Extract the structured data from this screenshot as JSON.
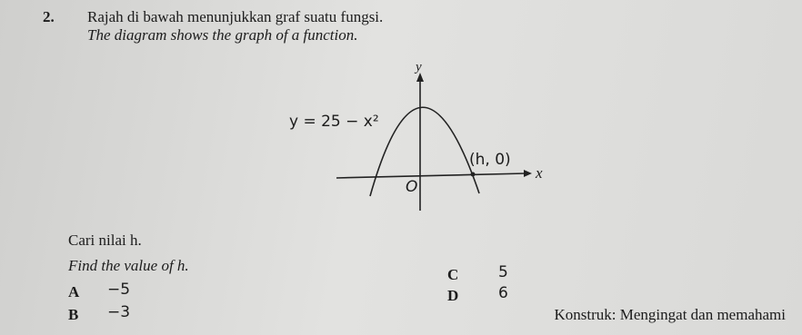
{
  "question": {
    "number": "2.",
    "text_malay": "Rajah di bawah menunjukkan graf suatu fungsi.",
    "text_english": "The diagram shows the graph of a function.",
    "diagram": {
      "y_axis_label": "y",
      "x_axis_label": "x",
      "origin_label": "O",
      "curve_label": "y = 25 − x²",
      "point_label": "(h, 0)"
    },
    "prompt_malay": "Cari nilai h.",
    "prompt_english": "Find the value of h.",
    "options": [
      {
        "letter": "A",
        "answer": "−5"
      },
      {
        "letter": "B",
        "answer": "−3"
      },
      {
        "letter": "C",
        "answer": "5"
      },
      {
        "letter": "D",
        "answer": "6"
      }
    ],
    "construct": "Konstruk: Mengingat dan memahami"
  }
}
